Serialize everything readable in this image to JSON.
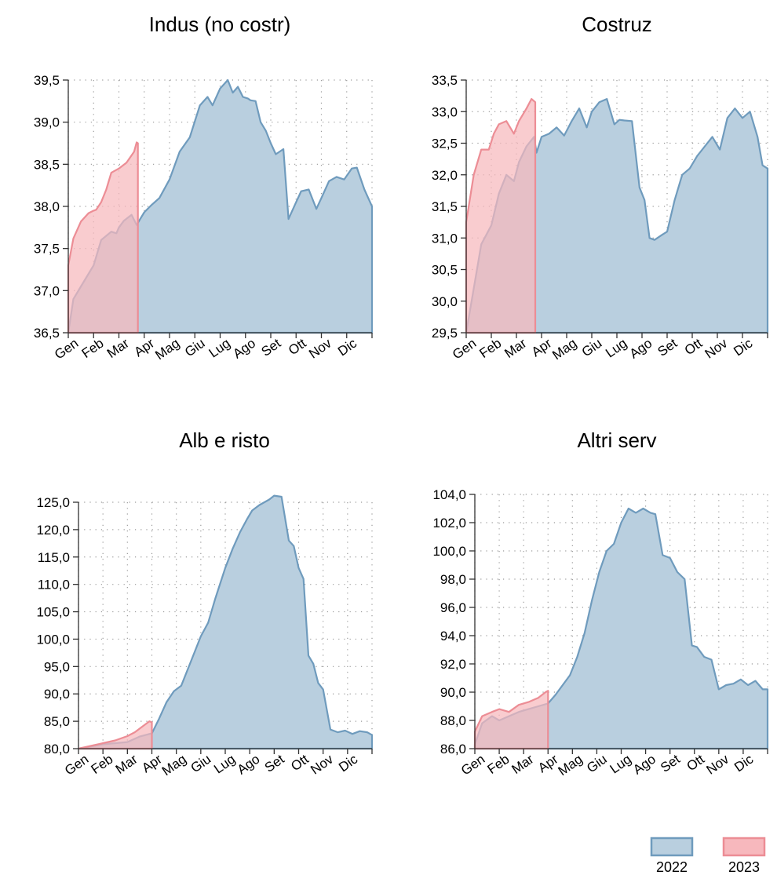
{
  "colors": {
    "y2022_fill": "#b9cfdf",
    "y2022_line": "#6f9bbd",
    "y2023_fill": "#f7b8bd",
    "y2023_line": "#ec8d95",
    "grid": "#9a9a9a",
    "axis": "#333333"
  },
  "legend": [
    {
      "label": "2022",
      "series": "2022"
    },
    {
      "label": "2023",
      "series": "2023"
    }
  ],
  "chart_data": [
    {
      "type": "area",
      "title": "Indus (no costr)",
      "months": [
        "Gen",
        "Feb",
        "Mar",
        "Apr",
        "Mag",
        "Giu",
        "Lug",
        "Ago",
        "Set",
        "Ott",
        "Nov",
        "Dic"
      ],
      "ylim": [
        36.5,
        39.5
      ],
      "yticks": [
        "36,5",
        "37,0",
        "37,5",
        "38,0",
        "38,5",
        "39,0",
        "39,5"
      ],
      "grid": true,
      "series": [
        {
          "name": "2022",
          "x": [
            0,
            0.2,
            0.5,
            1,
            1.3,
            1.7,
            1.9,
            2.0,
            2.2,
            2.5,
            2.7,
            3.0,
            3.3,
            3.6,
            4.0,
            4.4,
            4.8,
            5.2,
            5.5,
            5.7,
            6.0,
            6.3,
            6.5,
            6.7,
            6.9,
            7.1,
            7.2,
            7.4,
            7.6,
            7.8,
            8.0,
            8.2,
            8.5,
            8.7,
            9.0,
            9.2,
            9.5,
            9.8,
            10.0,
            10.3,
            10.6,
            10.9,
            11.2,
            11.4,
            11.7,
            12.0
          ],
          "y": [
            36.5,
            36.9,
            37.05,
            37.3,
            37.6,
            37.7,
            37.68,
            37.75,
            37.83,
            37.9,
            37.78,
            37.93,
            38.02,
            38.1,
            38.32,
            38.65,
            38.82,
            39.2,
            39.3,
            39.2,
            39.4,
            39.5,
            39.35,
            39.42,
            39.3,
            39.28,
            39.26,
            39.25,
            39.0,
            38.9,
            38.75,
            38.62,
            38.68,
            37.85,
            38.05,
            38.18,
            38.2,
            37.97,
            38.1,
            38.3,
            38.35,
            38.32,
            38.45,
            38.46,
            38.2,
            38.0
          ]
        },
        {
          "name": "2023",
          "x": [
            0,
            0.2,
            0.5,
            0.8,
            1.0,
            1.1,
            1.3,
            1.5,
            1.7,
            2.0,
            2.3,
            2.6,
            2.7,
            2.75
          ],
          "y": [
            37.3,
            37.62,
            37.82,
            37.92,
            37.95,
            37.96,
            38.05,
            38.2,
            38.4,
            38.45,
            38.52,
            38.65,
            38.76,
            38.75
          ]
        }
      ]
    },
    {
      "type": "area",
      "title": "Costruz",
      "months": [
        "Gen",
        "Feb",
        "Mar",
        "Apr",
        "Mag",
        "Giu",
        "Lug",
        "Ago",
        "Set",
        "Ott",
        "Nov",
        "Dic"
      ],
      "ylim": [
        29.5,
        33.5
      ],
      "yticks": [
        "29,5",
        "30,0",
        "30,5",
        "31,0",
        "31,5",
        "32,0",
        "32,5",
        "33,0",
        "33,5"
      ],
      "grid": true,
      "series": [
        {
          "name": "2022",
          "x": [
            0,
            0.3,
            0.6,
            1.0,
            1.3,
            1.6,
            1.9,
            2.1,
            2.4,
            2.7,
            2.8,
            3.0,
            3.3,
            3.6,
            3.9,
            4.2,
            4.5,
            4.8,
            5.0,
            5.3,
            5.6,
            5.9,
            6.1,
            6.3,
            6.6,
            6.9,
            7.1,
            7.3,
            7.5,
            7.8,
            8.0,
            8.3,
            8.6,
            8.9,
            9.2,
            9.5,
            9.8,
            10.1,
            10.4,
            10.7,
            11.0,
            11.3,
            11.6,
            11.8,
            12.0
          ],
          "y": [
            29.5,
            30.2,
            30.9,
            31.2,
            31.7,
            32.0,
            31.9,
            32.2,
            32.45,
            32.6,
            32.35,
            32.6,
            32.65,
            32.75,
            32.62,
            32.85,
            33.05,
            32.75,
            33.0,
            33.15,
            33.2,
            32.8,
            32.87,
            32.86,
            32.85,
            31.8,
            31.6,
            31.0,
            30.97,
            31.05,
            31.1,
            31.6,
            32.0,
            32.1,
            32.3,
            32.45,
            32.6,
            32.4,
            32.9,
            33.05,
            32.9,
            33.0,
            32.6,
            32.15,
            32.1
          ]
        },
        {
          "name": "2023",
          "x": [
            0,
            0.3,
            0.6,
            0.9,
            1.1,
            1.3,
            1.6,
            1.9,
            2.1,
            2.4,
            2.6,
            2.75
          ],
          "y": [
            31.25,
            32.0,
            32.4,
            32.4,
            32.65,
            32.8,
            32.85,
            32.65,
            32.85,
            33.05,
            33.2,
            33.15
          ]
        }
      ]
    },
    {
      "type": "area",
      "title": "Alb e risto",
      "months": [
        "Gen",
        "Feb",
        "Mar",
        "Apr",
        "Mag",
        "Giu",
        "Lug",
        "Ago",
        "Set",
        "Ott",
        "Nov",
        "Dic"
      ],
      "ylim": [
        80.0,
        125.0
      ],
      "yticks": [
        "80,0",
        "85,0",
        "90,0",
        "95,0",
        "100,0",
        "105,0",
        "110,0",
        "115,0",
        "120,0",
        "125,0"
      ],
      "grid": true,
      "series": [
        {
          "name": "2022",
          "x": [
            0,
            1.0,
            2.0,
            2.5,
            3.0,
            3.3,
            3.6,
            3.9,
            4.2,
            4.6,
            5.0,
            5.3,
            5.6,
            6.0,
            6.3,
            6.6,
            6.9,
            7.1,
            7.4,
            7.6,
            7.8,
            8.0,
            8.3,
            8.6,
            8.8,
            9.0,
            9.2,
            9.4,
            9.6,
            9.8,
            10.0,
            10.3,
            10.6,
            10.9,
            11.2,
            11.5,
            11.8,
            12.0
          ],
          "y": [
            80.0,
            80.8,
            81.2,
            82.2,
            82.8,
            85.5,
            88.5,
            90.5,
            91.5,
            96.0,
            100.5,
            103.0,
            107.5,
            113.0,
            116.5,
            119.5,
            122.0,
            123.5,
            124.5,
            125.0,
            125.5,
            126.2,
            126.0,
            118.0,
            117.0,
            113.0,
            111.0,
            97.0,
            95.5,
            92.0,
            90.8,
            83.5,
            83.0,
            83.3,
            82.7,
            83.2,
            83.0,
            82.5
          ]
        },
        {
          "name": "2023",
          "x": [
            0,
            0.5,
            1.0,
            1.5,
            2.0,
            2.3,
            2.6,
            2.9,
            3.0
          ],
          "y": [
            80.0,
            80.5,
            81.0,
            81.5,
            82.3,
            83.0,
            84.0,
            85.0,
            84.8
          ]
        }
      ]
    },
    {
      "type": "area",
      "title": "Altri serv",
      "months": [
        "Gen",
        "Feb",
        "Mar",
        "Apr",
        "Mag",
        "Giu",
        "Lug",
        "Ago",
        "Set",
        "Ott",
        "Nov",
        "Dic"
      ],
      "ylim": [
        86.0,
        104.0
      ],
      "yticks": [
        "86,0",
        "88,0",
        "90,0",
        "92,0",
        "94,0",
        "96,0",
        "98,0",
        "100,0",
        "102,0",
        "104,0"
      ],
      "grid": true,
      "series": [
        {
          "name": "2022",
          "x": [
            0,
            0.3,
            0.7,
            1.0,
            1.4,
            1.8,
            2.2,
            2.6,
            3.0,
            3.3,
            3.6,
            3.9,
            4.2,
            4.5,
            4.8,
            5.1,
            5.4,
            5.7,
            6.0,
            6.3,
            6.6,
            6.9,
            7.2,
            7.4,
            7.7,
            8.0,
            8.3,
            8.6,
            8.9,
            9.1,
            9.4,
            9.7,
            10.0,
            10.3,
            10.6,
            10.9,
            11.2,
            11.5,
            11.8,
            12.0
          ],
          "y": [
            86.3,
            87.8,
            88.3,
            88.0,
            88.3,
            88.6,
            88.8,
            89.0,
            89.2,
            89.8,
            90.5,
            91.2,
            92.5,
            94.2,
            96.5,
            98.5,
            100.0,
            100.5,
            102.0,
            103.0,
            102.7,
            103.0,
            102.7,
            102.6,
            99.7,
            99.5,
            98.5,
            98.0,
            93.3,
            93.2,
            92.5,
            92.3,
            90.2,
            90.5,
            90.6,
            90.9,
            90.5,
            90.8,
            90.2,
            90.2
          ]
        },
        {
          "name": "2023",
          "x": [
            0,
            0.3,
            0.7,
            1.0,
            1.4,
            1.8,
            2.2,
            2.6,
            2.9,
            3.0
          ],
          "y": [
            87.2,
            88.3,
            88.6,
            88.8,
            88.6,
            89.1,
            89.3,
            89.6,
            90.0,
            90.1
          ]
        }
      ]
    }
  ]
}
